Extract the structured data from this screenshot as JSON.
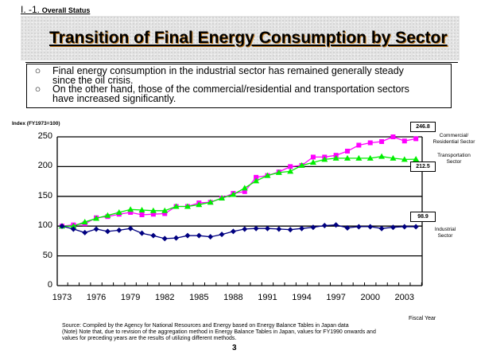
{
  "section": {
    "number": "I. -1.",
    "label": "Overall Status"
  },
  "title": "Transition of Final Energy Consumption by Sector",
  "bullets": [
    {
      "mark": "○",
      "lines": [
        "Final energy  consumption in the  industrial  sector has remained  generally  steady",
        "since the oil crisis."
      ]
    },
    {
      "mark": "○",
      "lines": [
        "On the other hand, those of the commercial/residential and transportation sectors",
        "have increased significantly."
      ]
    }
  ],
  "page_number": "3",
  "source_lines": [
    "Source: Compiled by the Agency for National Resources and Energy based on Energy Balance Tables in Japan data",
    "(Note) Note that, due to revision of the aggregation method in Energy Balance Tables in Japan, values for FY1990 onwards and",
    "values for preceding years are the results of utilizing different methods."
  ],
  "chart_data": {
    "type": "line",
    "title": "Transition of Final Energy Consumption by Sector",
    "ylabel": "Index (FY1973=100)",
    "xlabel": "Fiscal Year",
    "ylim": [
      0,
      250
    ],
    "yticks": [
      0,
      50,
      100,
      150,
      200,
      250
    ],
    "grid": true,
    "x": [
      1973,
      1974,
      1975,
      1976,
      1977,
      1978,
      1979,
      1980,
      1981,
      1982,
      1983,
      1984,
      1985,
      1986,
      1987,
      1988,
      1989,
      1990,
      1991,
      1992,
      1993,
      1994,
      1995,
      1996,
      1997,
      1998,
      1999,
      2000,
      2001,
      2002,
      2003,
      2004
    ],
    "xtick_labels": [
      "1973",
      "1976",
      "1979",
      "1982",
      "1985",
      "1988",
      "1991",
      "1994",
      "1997",
      "2000",
      "2003"
    ],
    "series": [
      {
        "name": "Commercial/ Residential Sector",
        "color": "#ff00ff",
        "marker": "square",
        "end_label": "246.8",
        "values": [
          100,
          102,
          104,
          114,
          116,
          120,
          123,
          119,
          120,
          121,
          133,
          133,
          139,
          140,
          147,
          155,
          158,
          182,
          185,
          191,
          200,
          202,
          216,
          216,
          219,
          226,
          236,
          240,
          242,
          250,
          243,
          246.8
        ]
      },
      {
        "name": "Transportation Sector",
        "color": "#00ee00",
        "marker": "triangle",
        "end_label": "212.5",
        "values": [
          100,
          100,
          107,
          113,
          118,
          123,
          128,
          127,
          126,
          126,
          133,
          133,
          136,
          140,
          147,
          153,
          164,
          176,
          185,
          190,
          192,
          202,
          207,
          212,
          214,
          214,
          214,
          214,
          217,
          214,
          212,
          212.5
        ]
      },
      {
        "name": "Industrial Sector",
        "color": "#000080",
        "marker": "diamond",
        "end_label": "98.9",
        "values": [
          100,
          95,
          89,
          95,
          91,
          93,
          96,
          88,
          84,
          79,
          80,
          84,
          84,
          82,
          86,
          91,
          95,
          96,
          96,
          95,
          94,
          96,
          98,
          101,
          102,
          97,
          99,
          99,
          96,
          98,
          99,
          98.9
        ]
      }
    ]
  }
}
